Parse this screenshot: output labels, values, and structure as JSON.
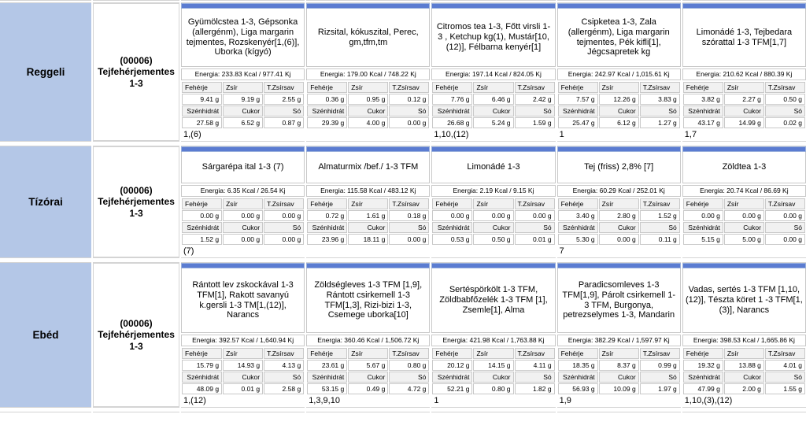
{
  "colors": {
    "accent_bar": "#5b7cd1",
    "meal_cell_bg": "#b4c7e7",
    "label_cell_bg": "#f1f1f1"
  },
  "labels": {
    "row1": [
      "Fehérje",
      "Zsír",
      "T.Zsírsav"
    ],
    "row2": [
      "Szénhidrát",
      "Cukor",
      "Só"
    ]
  },
  "meals": [
    {
      "name": "Reggeli",
      "program": "(00006) Tejfehérjementes 1-3",
      "items": [
        {
          "name": "Gyümölcstea 1-3, Gépsonka (allergénm), Liga margarin tejmentes, Rozskenyér[1,(6)], Uborka (kígyó)",
          "energia": "Energia: 233.83 Kcal / 977.41 Kj",
          "values1": [
            "9.41 g",
            "9.19 g",
            "2.55 g"
          ],
          "values2": [
            "27.58 g",
            "6.52 g",
            "0.87 g"
          ],
          "footer": "1,(6)"
        },
        {
          "name": "Rizsital, kókuszital, Perec, gm,tfm,tm",
          "energia": "Energia: 179.00 Kcal / 748.22 Kj",
          "values1": [
            "0.36 g",
            "0.95 g",
            "0.12 g"
          ],
          "values2": [
            "29.39 g",
            "4.00 g",
            "0.00 g"
          ],
          "footer": ""
        },
        {
          "name": "Citromos tea 1-3, Főtt virsli 1-3 , Ketchup kg(1), Mustár[10,(12)], Félbarna kenyér[1]",
          "energia": "Energia: 197.14 Kcal / 824.05 Kj",
          "values1": [
            "7.76 g",
            "6.46 g",
            "2.42 g"
          ],
          "values2": [
            "26.68 g",
            "5.24 g",
            "1.59 g"
          ],
          "footer": "1,10,(12)"
        },
        {
          "name": "Csipketea 1-3, Zala (allergénm), Liga margarin tejmentes, Pék kifli[1], Jégcsapretek kg",
          "energia": "Energia: 242.97 Kcal / 1,015.61 Kj",
          "values1": [
            "7.57 g",
            "12.26 g",
            "3.83 g"
          ],
          "values2": [
            "25.47 g",
            "6.12 g",
            "1.27 g"
          ],
          "footer": "1"
        },
        {
          "name": "Limonádé 1-3, Tejbedara szórattal 1-3 TFM[1,7]",
          "energia": "Energia: 210.62 Kcal / 880.39 Kj",
          "values1": [
            "3.82 g",
            "2.27 g",
            "0.50 g"
          ],
          "values2": [
            "43.17 g",
            "14.99 g",
            "0.02 g"
          ],
          "footer": "1,7"
        }
      ]
    },
    {
      "name": "Tízórai",
      "program": "(00006) Tejfehérjementes 1-3",
      "items": [
        {
          "name": "Sárgarépa ital 1-3 (7)",
          "energia": "Energia: 6.35 Kcal / 26.54 Kj",
          "values1": [
            "0.00 g",
            "0.00 g",
            "0.00 g"
          ],
          "values2": [
            "1.52 g",
            "0.00 g",
            "0.00 g"
          ],
          "footer": "(7)"
        },
        {
          "name": "Almaturmix /bef./ 1-3 TFM",
          "energia": "Energia: 115.58 Kcal / 483.12 Kj",
          "values1": [
            "0.72 g",
            "1.61 g",
            "0.18 g"
          ],
          "values2": [
            "23.96 g",
            "18.11 g",
            "0.00 g"
          ],
          "footer": ""
        },
        {
          "name": "Limonádé 1-3",
          "energia": "Energia: 2.19 Kcal / 9.15 Kj",
          "values1": [
            "0.00 g",
            "0.00 g",
            "0.00 g"
          ],
          "values2": [
            "0.53 g",
            "0.50 g",
            "0.01 g"
          ],
          "footer": ""
        },
        {
          "name": "Tej (friss) 2,8% [7]",
          "energia": "Energia: 60.29 Kcal / 252.01 Kj",
          "values1": [
            "3.40 g",
            "2.80 g",
            "1.52 g"
          ],
          "values2": [
            "5.30 g",
            "0.00 g",
            "0.11 g"
          ],
          "footer": "7"
        },
        {
          "name": "Zöldtea 1-3",
          "energia": "Energia: 20.74 Kcal / 86.69 Kj",
          "values1": [
            "0.00 g",
            "0.00 g",
            "0.00 g"
          ],
          "values2": [
            "5.15 g",
            "5.00 g",
            "0.00 g"
          ],
          "footer": ""
        }
      ]
    },
    {
      "name": "Ebéd",
      "program": "(00006) Tejfehérjementes 1-3",
      "items": [
        {
          "name": "Rántott lev zskockával 1-3 TFM[1], Rakott savanyú k.gersli 1-3 TM[1,(12)], Narancs",
          "energia": "Energia: 392.57 Kcal / 1,640.94 Kj",
          "values1": [
            "15.79 g",
            "14.93 g",
            "4.13 g"
          ],
          "values2": [
            "48.09 g",
            "0.01 g",
            "2.58 g"
          ],
          "footer": "1,(12)"
        },
        {
          "name": "Zöldségleves 1-3 TFM [1,9], Rántott csirkemell 1-3 TFM[1,3], Rizi-bizi 1-3, Csemege uborka[10]",
          "energia": "Energia: 360.46 Kcal / 1,506.72 Kj",
          "values1": [
            "23.61 g",
            "5.67 g",
            "0.80 g"
          ],
          "values2": [
            "53.15 g",
            "0.49 g",
            "4.72 g"
          ],
          "footer": "1,3,9,10"
        },
        {
          "name": "Sertéspörkölt 1-3 TFM, Zöldbabfőzelék 1-3 TFM [1], Zsemle[1], Alma",
          "energia": "Energia: 421.98 Kcal / 1,763.88 Kj",
          "values1": [
            "20.12 g",
            "14.15 g",
            "4.11 g"
          ],
          "values2": [
            "52.21 g",
            "0.80 g",
            "1.82 g"
          ],
          "footer": "1"
        },
        {
          "name": "Paradicsomleves 1-3 TFM[1,9], Párolt csirkemell 1-3 TFM, Burgonya, petrezselymes 1-3, Mandarin",
          "energia": "Energia: 382.29 Kcal / 1,597.97 Kj",
          "values1": [
            "18.35 g",
            "8.37 g",
            "0.99 g"
          ],
          "values2": [
            "56.93 g",
            "10.09 g",
            "1.97 g"
          ],
          "footer": "1,9"
        },
        {
          "name": "Vadas, sertés 1-3 TFM [1,10,(12)], Tészta köret 1 -3 TFM[1,(3)], Narancs",
          "energia": "Energia: 398.53 Kcal / 1,665.86 Kj",
          "values1": [
            "19.32 g",
            "13.88 g",
            "4.01 g"
          ],
          "values2": [
            "47.99 g",
            "2.00 g",
            "1.55 g"
          ],
          "footer": "1,10,(3),(12)"
        }
      ]
    }
  ]
}
